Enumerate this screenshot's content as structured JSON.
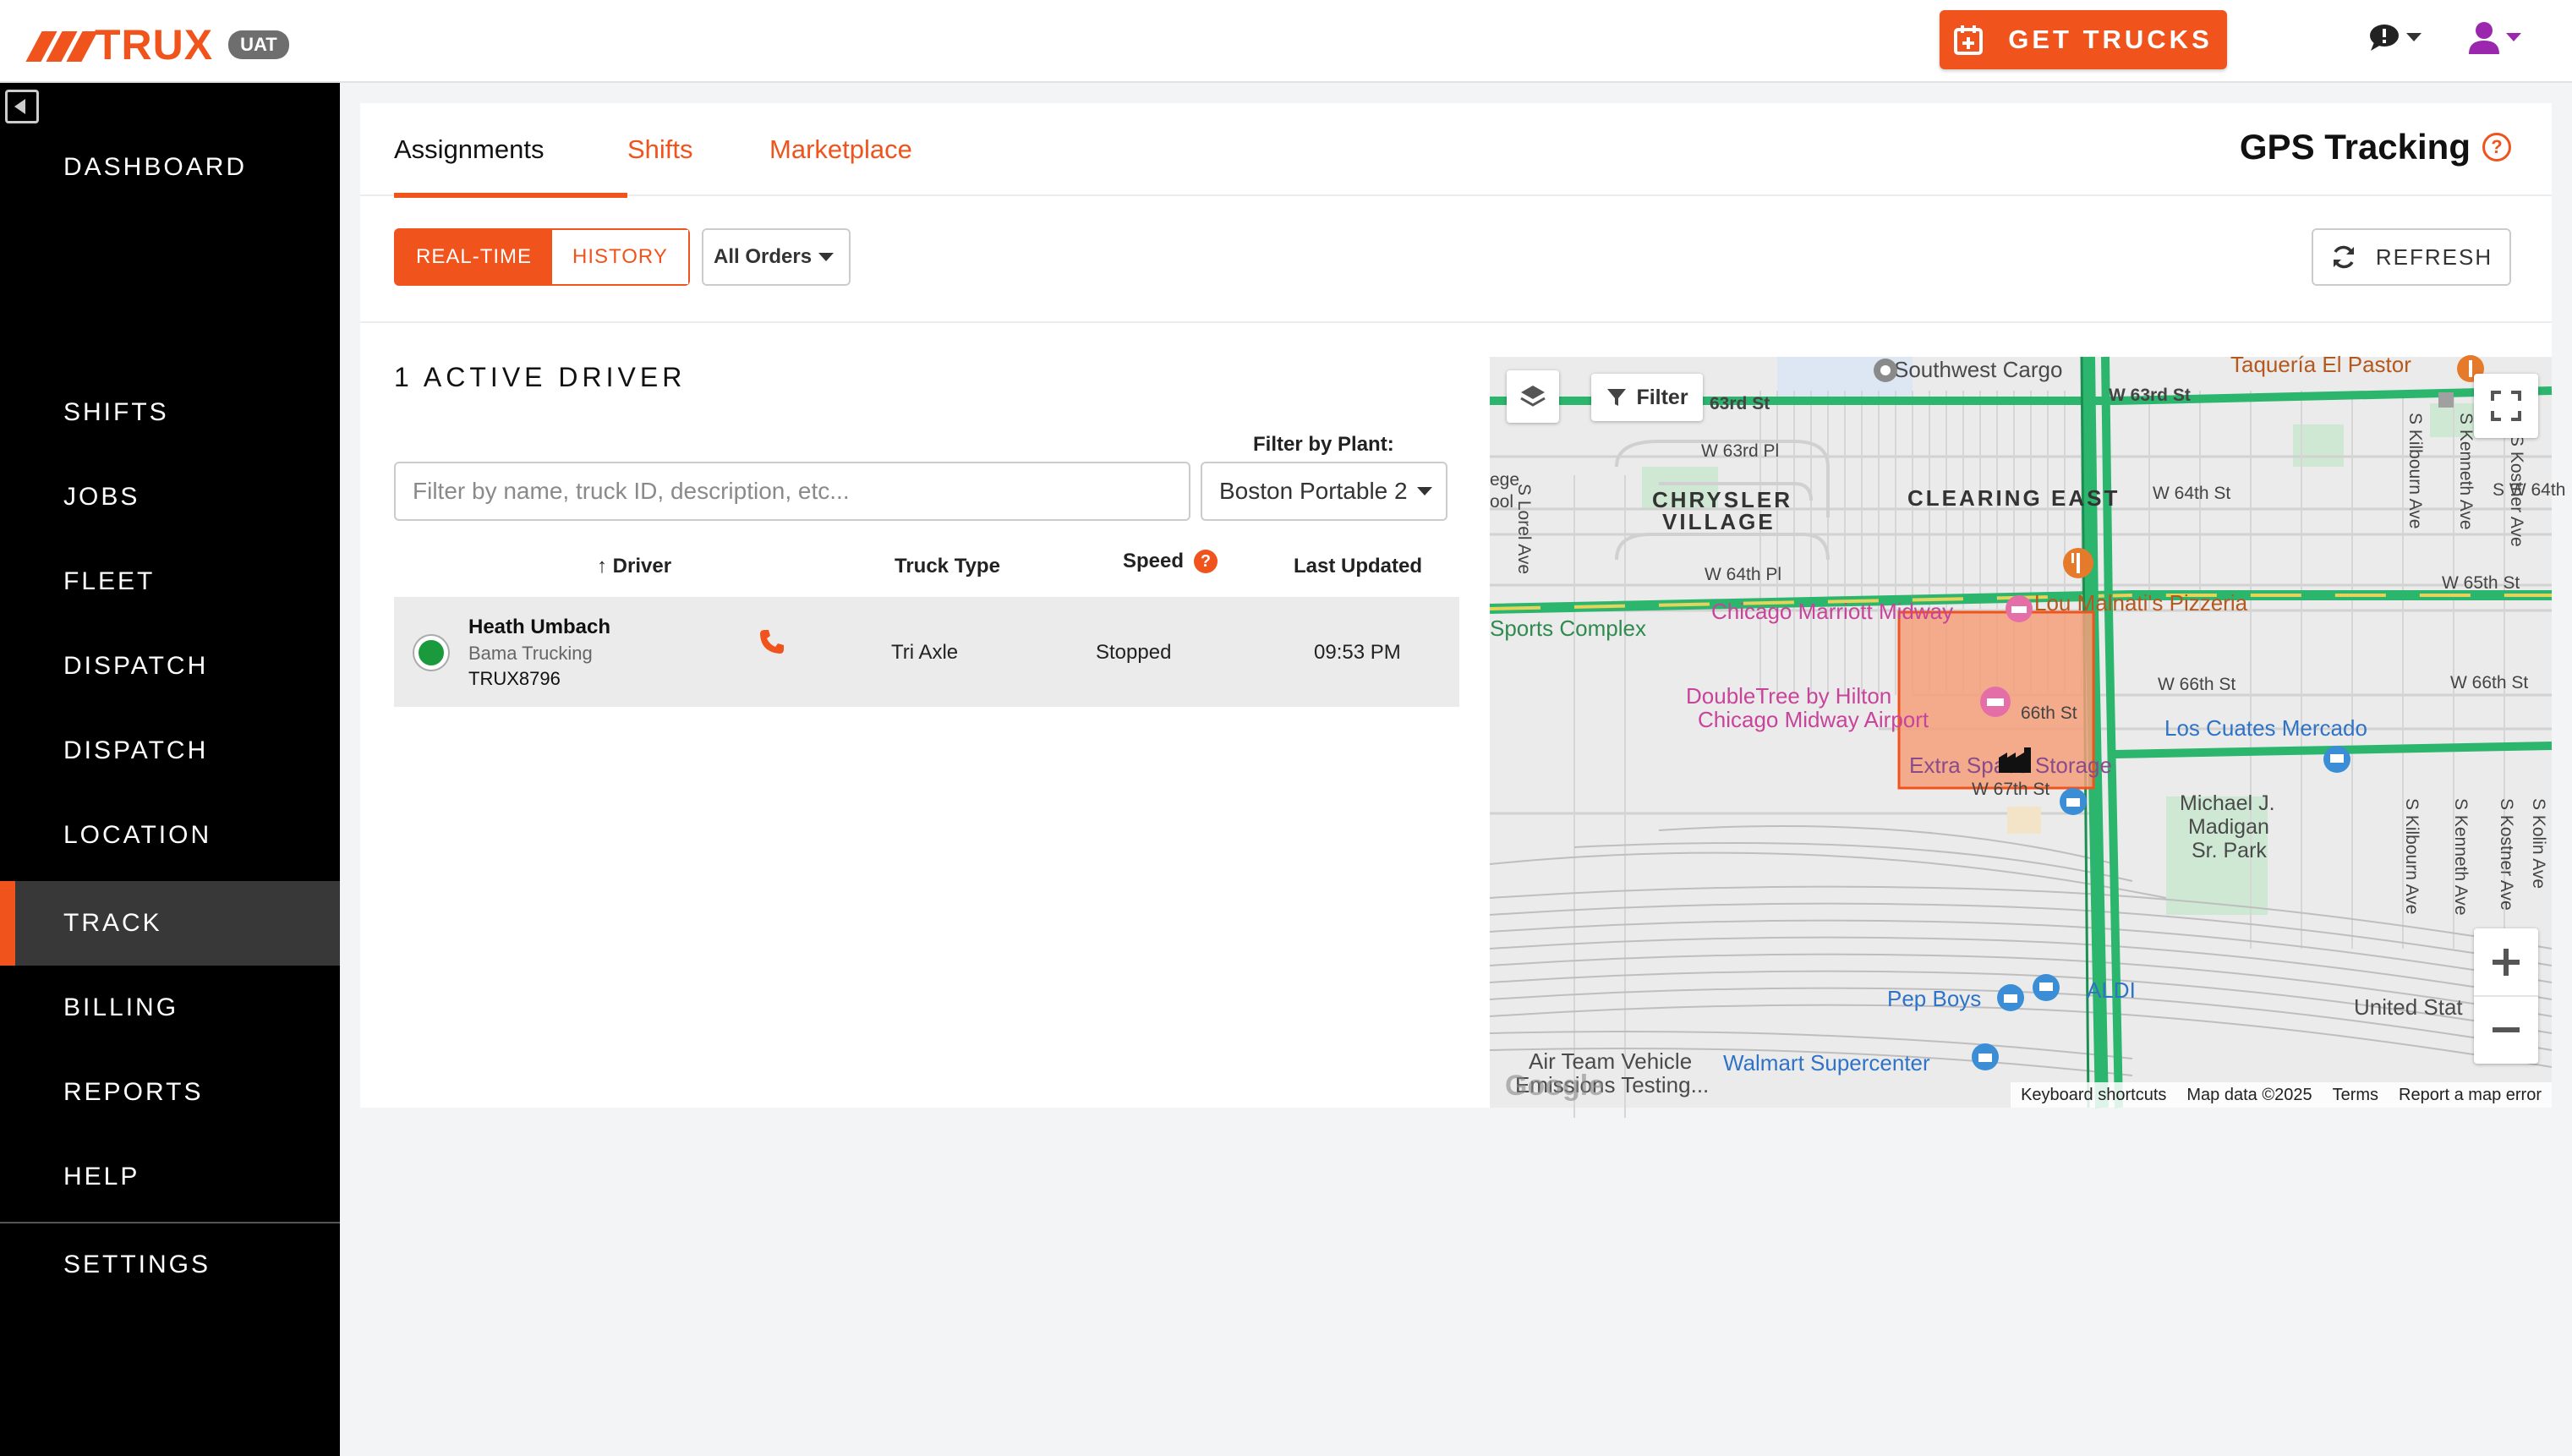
{
  "app": {
    "logo_text": "TRUX",
    "env_badge": "UAT",
    "get_trucks_label": "GET TRUCKS"
  },
  "sidebar": {
    "items": [
      {
        "label": "DASHBOARD"
      },
      {
        "label": "SHIFTS"
      },
      {
        "label": "JOBS"
      },
      {
        "label": "FLEET"
      },
      {
        "label": "DISPATCH"
      },
      {
        "label": "DISPATCH"
      },
      {
        "label": "LOCATION"
      },
      {
        "label": "TRACK"
      },
      {
        "label": "BILLING"
      },
      {
        "label": "REPORTS"
      },
      {
        "label": "HELP"
      },
      {
        "label": "SETTINGS"
      }
    ],
    "active": "TRACK"
  },
  "tabs": [
    {
      "label": "Assignments",
      "active": true
    },
    {
      "label": "Shifts",
      "active": false
    },
    {
      "label": "Marketplace",
      "active": false
    }
  ],
  "page_title": "GPS Tracking",
  "toolbar": {
    "realtime_label": "REAL-TIME",
    "history_label": "HISTORY",
    "orders_filter": "All Orders",
    "refresh_label": "REFRESH"
  },
  "drivers_panel": {
    "active_count_label": "1 ACTIVE DRIVER",
    "search_placeholder": "Filter by name, truck ID, description, etc...",
    "plant_label": "Filter by Plant:",
    "plant_value": "Boston Portable 2",
    "columns": {
      "driver": "Driver",
      "truck_type": "Truck Type",
      "speed": "Speed",
      "last_updated": "Last Updated"
    },
    "rows": [
      {
        "name": "Heath Umbach",
        "company": "Bama Trucking",
        "truck_id": "TRUX8796",
        "truck_type": "Tri Axle",
        "speed": "Stopped",
        "last_updated": "09:53 PM"
      }
    ]
  },
  "map": {
    "filter_label": "Filter",
    "labels": {
      "southwest_cargo": "Southwest Cargo",
      "taqueria": "Taquería El Pastor",
      "w63rd_a": "63rd St",
      "w63rd_b": "W 63rd St",
      "w63rd_pl": "W 63rd Pl",
      "chrysler": "CHRYSLER",
      "village": "VILLAGE",
      "clearing_east": "CLEARING EAST",
      "w64th_a": "W 64th St",
      "w64th_b": "S W 64th",
      "w64th_pl": "W 64th Pl",
      "w65th": "W 65th St",
      "sports_complex": "Sports Complex",
      "marriott": "Chicago Marriott Midway",
      "lou_malnatis": "Lou Malnati's Pizzeria",
      "doubletree_1": "DoubleTree by Hilton",
      "doubletree_2": "Chicago Midway Airport",
      "w66th_a": "66th St",
      "w66th_b": "W 66th St",
      "w66th_c": "W 66th St",
      "los_cuates": "Los Cuates Mercado",
      "extra_space": "Extra Space Storage",
      "w67th": "W 67th St",
      "madigan_1": "Michael J.",
      "madigan_2": "Madigan",
      "madigan_3": "Sr. Park",
      "pep_boys": "Pep Boys",
      "aldi": "ALDI",
      "united": "United Stat",
      "air_team_1": "Air Team Vehicle",
      "air_team_2": "Emissions Testing...",
      "walmart": "Walmart Supercenter",
      "lorel": "S Lorel Ave",
      "kilbourn_a": "S Kilbourn Ave",
      "kenneth_a": "S Kenneth Ave",
      "kostner_a": "S Kostner Ave",
      "kilbourn_b": "S Kilbourn Ave",
      "kenneth_b": "S Kenneth Ave",
      "kostner_b": "S Kostner Ave",
      "kolin": "S Kolin Ave",
      "ege": "ege",
      "ool": "ool",
      "google": "Google"
    },
    "footer": {
      "shortcuts": "Keyboard shortcuts",
      "map_data": "Map data ©2025",
      "terms": "Terms",
      "report": "Report a map error"
    }
  },
  "colors": {
    "brand": "#f0531c",
    "sidebar_bg": "#000000",
    "status_active": "#1a9a3c",
    "user_icon": "#9b27af"
  }
}
